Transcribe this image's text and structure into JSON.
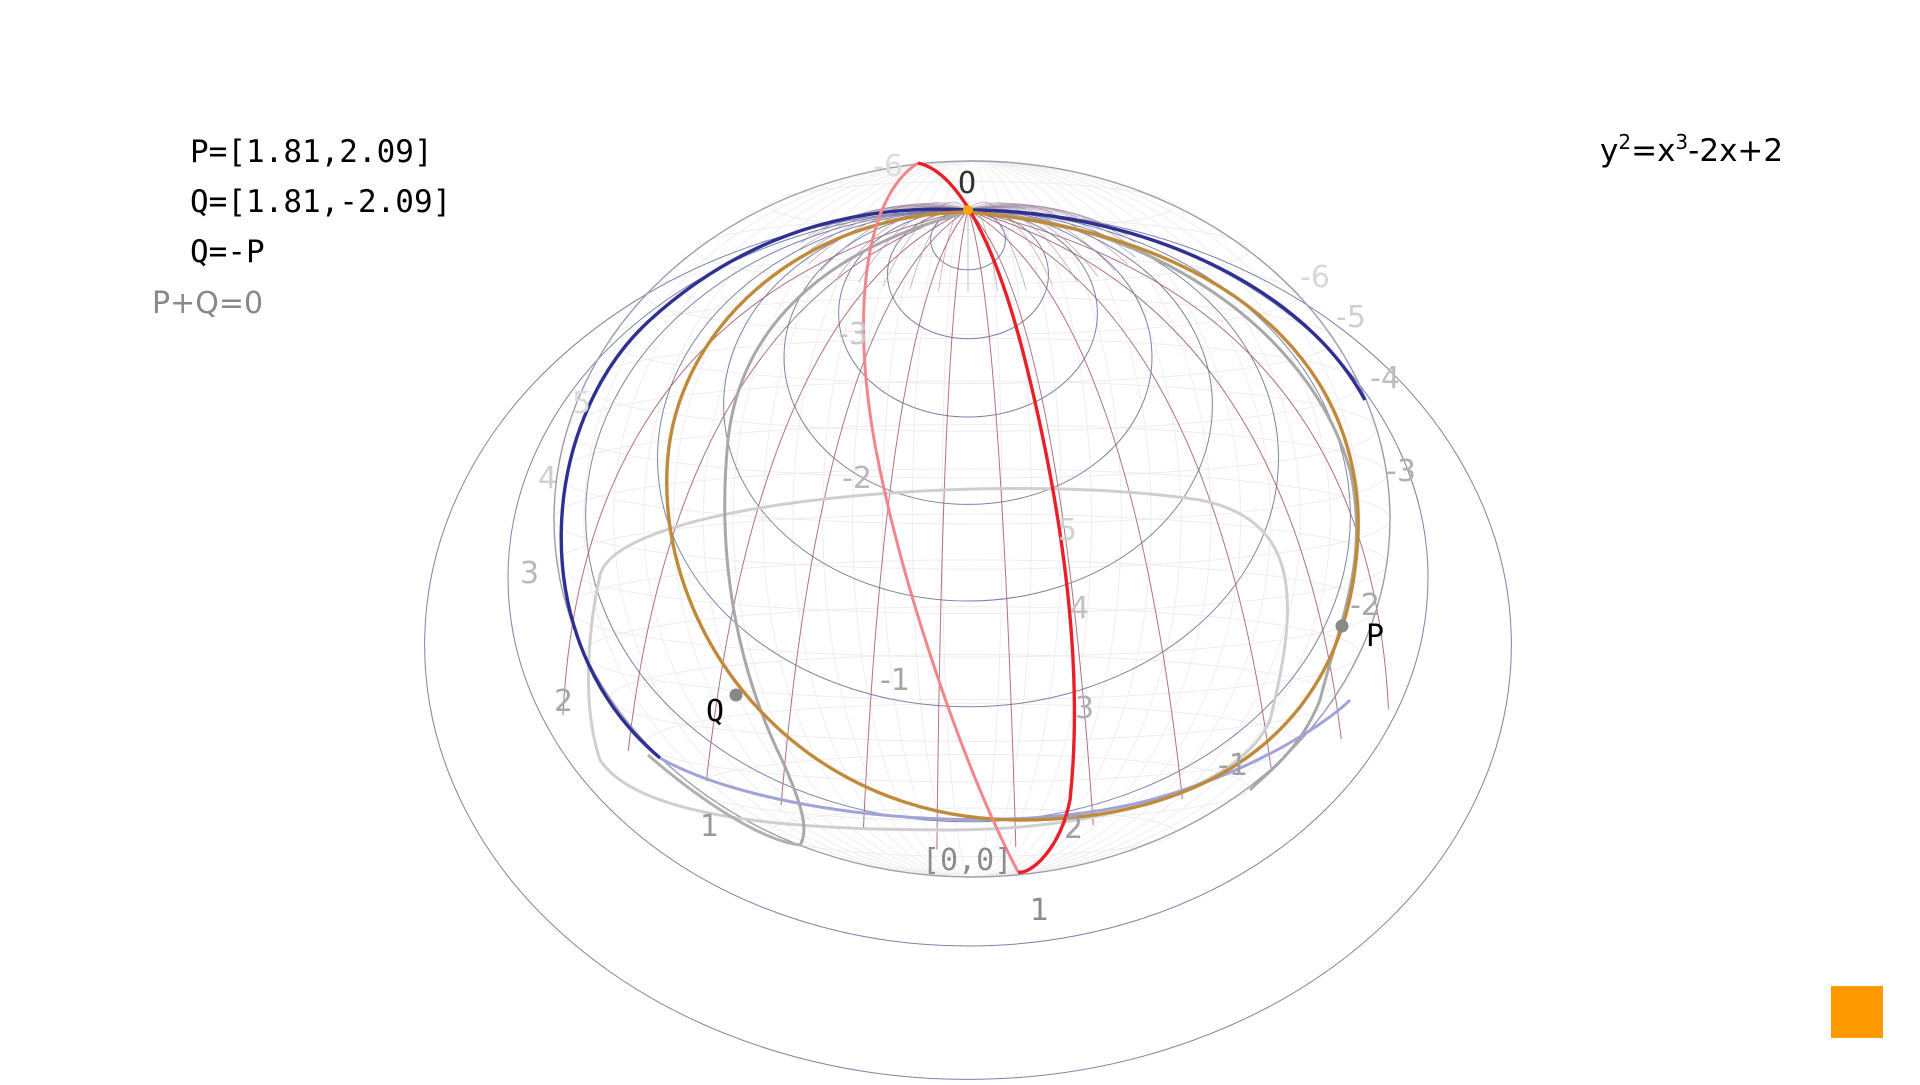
{
  "info": {
    "p": "P=[1.81,2.09]",
    "q": "Q=[1.81,-2.09]",
    "relation": "Q=-P",
    "sum": "P+Q=0"
  },
  "equation": {
    "base_y": "y",
    "exp_y": "2",
    "eq_x": "=x",
    "exp_x": "3",
    "rest": "-2x+2"
  },
  "points": {
    "p": "P",
    "q": "Q",
    "infinity": "O",
    "origin": "[0,0]"
  },
  "axis_labels": {
    "neg6_top": "-6",
    "neg6": "-6",
    "neg5": "-5",
    "neg4": "-4",
    "neg3_right": "-3",
    "neg2_right": "-2",
    "neg1_right": "-1",
    "neg3_inner": "-3",
    "neg2_inner": "-2",
    "neg1_inner": "-1",
    "five_left": "5",
    "four_left": "4",
    "three_left": "3",
    "two_left": "2",
    "one_left": "1",
    "five_inner": "5",
    "four_inner": "4",
    "three_inner": "3",
    "two_inner": "2",
    "one_bottom": "1"
  },
  "colors": {
    "curve": "#bf8a3c",
    "blue_ring": "#2e3192",
    "red_meridian": "#e8202a",
    "point": "#888888",
    "infinity_point": "#ffa500",
    "button": "#ff9900"
  }
}
